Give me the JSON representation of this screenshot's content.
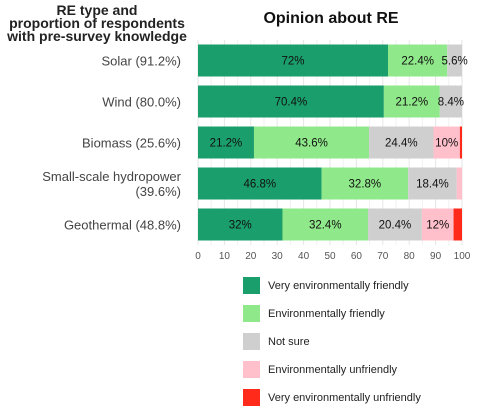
{
  "chart_data": {
    "type": "bar",
    "orientation": "horizontal",
    "stacked": true,
    "title": "Opinion about RE",
    "y_title_lines": [
      "RE type and",
      "proportion of respondents",
      "with pre-survey knowledge"
    ],
    "categories": [
      {
        "lines": [
          "Solar (91.2%)"
        ]
      },
      {
        "lines": [
          "Wind (80.0%)"
        ]
      },
      {
        "lines": [
          "Biomass (25.6%)"
        ]
      },
      {
        "lines": [
          "Small-scale hydropower",
          "(39.6%)"
        ]
      },
      {
        "lines": [
          "Geothermal (48.8%)"
        ]
      }
    ],
    "series": [
      {
        "name": "Very environmentally friendly",
        "color": "#1a9e6b",
        "values": [
          72,
          70.4,
          21.2,
          46.8,
          32
        ],
        "labels": [
          "72%",
          "70.4%",
          "21.2%",
          "46.8%",
          "32%"
        ]
      },
      {
        "name": "Environmentally friendly",
        "color": "#8fe889",
        "values": [
          22.4,
          21.2,
          43.6,
          32.8,
          32.4
        ],
        "labels": [
          "22.4%",
          "21.2%",
          "43.6%",
          "32.8%",
          "32.4%"
        ]
      },
      {
        "name": "Not sure",
        "color": "#cfcfcf",
        "values": [
          5.6,
          8.4,
          24.4,
          18.4,
          20.4
        ],
        "labels": [
          "5.6%",
          "8.4%",
          "24.4%",
          "18.4%",
          "20.4%"
        ]
      },
      {
        "name": "Environmentally unfriendly",
        "color": "#ffc0cb",
        "values": [
          0,
          0,
          10,
          2,
          12
        ],
        "labels": [
          "",
          "",
          "10%",
          "",
          "12%"
        ]
      },
      {
        "name": "Very environmentally unfriendly",
        "color": "#ff2a1a",
        "values": [
          0,
          0,
          0.8,
          0,
          3.2
        ],
        "labels": [
          "",
          "",
          "",
          "",
          ""
        ]
      }
    ],
    "xlim": [
      0,
      100
    ],
    "xticks": [
      "0",
      "10",
      "20",
      "30",
      "40",
      "50",
      "60",
      "70",
      "80",
      "90",
      "100"
    ],
    "grid": true,
    "legend_position": "bottom"
  }
}
